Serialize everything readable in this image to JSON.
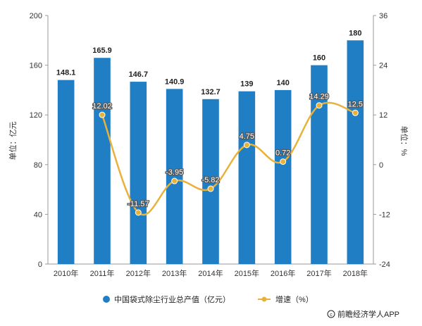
{
  "chart_data": {
    "type": "bar",
    "categories": [
      "2010年",
      "2011年",
      "2012年",
      "2013年",
      "2014年",
      "2015年",
      "2016年",
      "2017年",
      "2018年"
    ],
    "series": [
      {
        "name": "中国袋式除尘行业总产值（亿元）",
        "type": "bar",
        "axis": "left",
        "values": [
          148.1,
          165.9,
          146.7,
          140.9,
          132.7,
          139,
          140,
          160,
          180
        ],
        "labels": [
          "148.1",
          "165.9",
          "146.7",
          "140.9",
          "132.7",
          "139",
          "140",
          "160",
          "180"
        ]
      },
      {
        "name": "增速（%）",
        "type": "line",
        "axis": "right",
        "values": [
          null,
          12.02,
          -11.57,
          -3.95,
          -5.82,
          4.75,
          0.72,
          14.29,
          12.5
        ],
        "labels": [
          "",
          "12.02",
          "-11.57",
          "-3.95",
          "-5.82",
          "4.75",
          "0.72",
          "14.29",
          "12.5"
        ]
      }
    ],
    "y_left": {
      "label": "单位：亿元",
      "ylim": [
        0,
        200
      ],
      "ticks": [
        "0",
        "40",
        "80",
        "120",
        "160",
        "200"
      ]
    },
    "y_right": {
      "label": "单位：%",
      "ylim": [
        -24,
        36
      ],
      "ticks": [
        "-24",
        "-12",
        "0",
        "12",
        "24",
        "36"
      ]
    },
    "grid": false,
    "legend": "bottom"
  },
  "colors": {
    "bar": "#1f7ec4",
    "line": "#e8b23a",
    "axis": "#999999"
  },
  "source_icon": "copyright-icon",
  "source": "前瞻经济学人APP"
}
